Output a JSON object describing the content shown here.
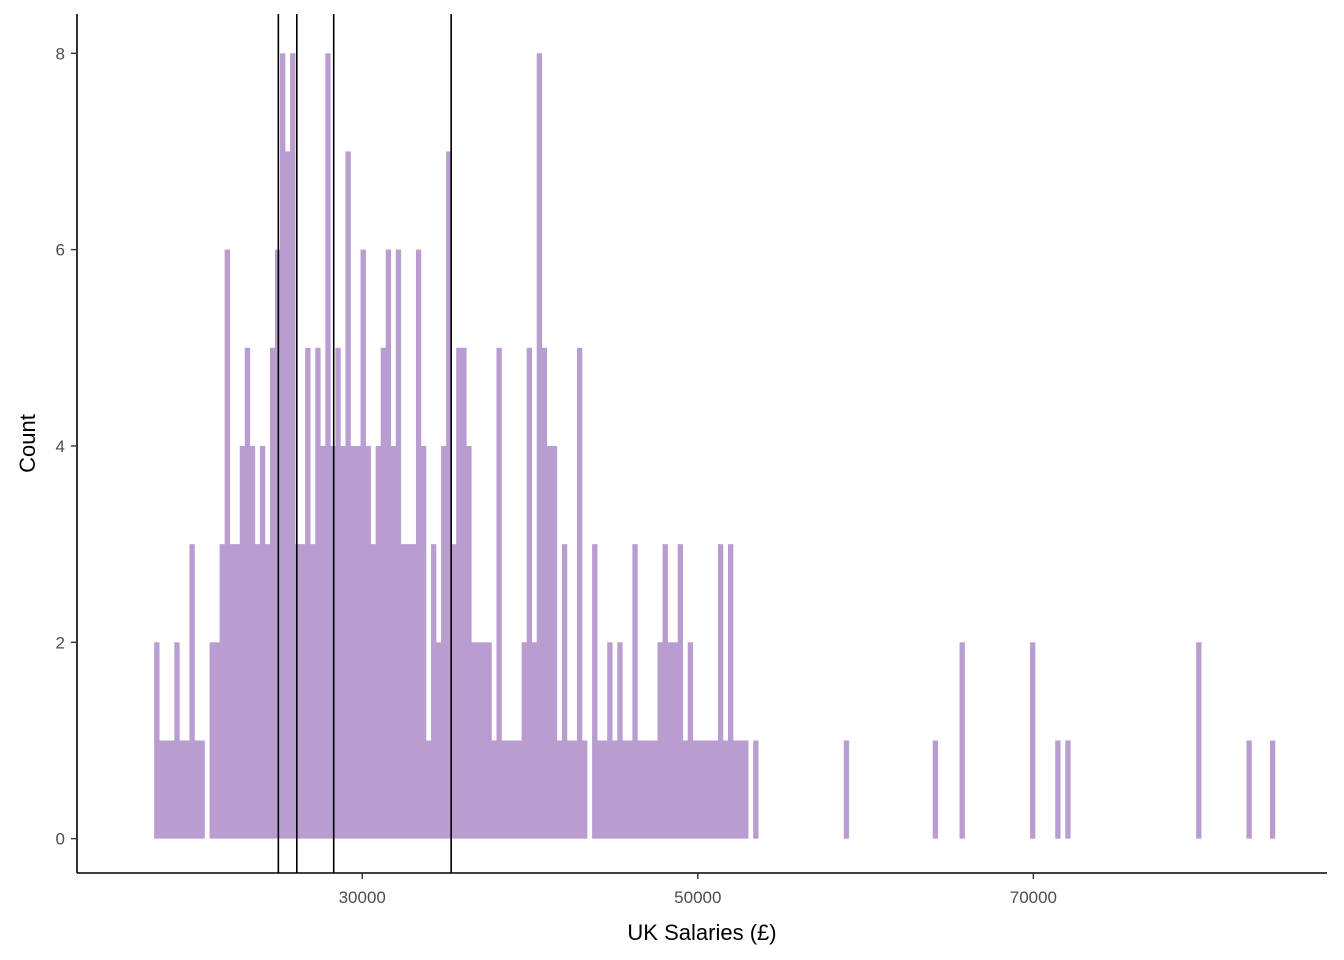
{
  "chart_data": {
    "type": "bar",
    "subtype": "histogram",
    "title": "",
    "xlabel": "UK Salaries (£)",
    "ylabel": "Count",
    "xlim": [
      13000,
      87500
    ],
    "ylim": [
      -0.35,
      8.4
    ],
    "x_ticks": [
      30000,
      50000,
      70000
    ],
    "y_ticks": [
      0,
      2,
      4,
      6,
      8
    ],
    "grid": false,
    "legend": "none",
    "bin_width": 300,
    "bar_color": "#b99dd0",
    "vline_color": "#000000",
    "vlines": [
      25000,
      26100,
      28300,
      35300
    ],
    "bins": [
      {
        "x": 17750,
        "count": 2
      },
      {
        "x": 18050,
        "count": 1
      },
      {
        "x": 18350,
        "count": 1
      },
      {
        "x": 18650,
        "count": 1
      },
      {
        "x": 18950,
        "count": 2
      },
      {
        "x": 19250,
        "count": 1
      },
      {
        "x": 19550,
        "count": 1
      },
      {
        "x": 19850,
        "count": 3
      },
      {
        "x": 20150,
        "count": 1
      },
      {
        "x": 20450,
        "count": 1
      },
      {
        "x": 21050,
        "count": 2
      },
      {
        "x": 21350,
        "count": 2
      },
      {
        "x": 21650,
        "count": 3
      },
      {
        "x": 21950,
        "count": 6
      },
      {
        "x": 22250,
        "count": 3
      },
      {
        "x": 22550,
        "count": 3
      },
      {
        "x": 22850,
        "count": 4
      },
      {
        "x": 23150,
        "count": 5
      },
      {
        "x": 23450,
        "count": 4
      },
      {
        "x": 23750,
        "count": 3
      },
      {
        "x": 24050,
        "count": 4
      },
      {
        "x": 24350,
        "count": 3
      },
      {
        "x": 24650,
        "count": 5
      },
      {
        "x": 24950,
        "count": 6
      },
      {
        "x": 25250,
        "count": 8
      },
      {
        "x": 25550,
        "count": 7
      },
      {
        "x": 25850,
        "count": 8
      },
      {
        "x": 26150,
        "count": 3
      },
      {
        "x": 26450,
        "count": 3
      },
      {
        "x": 26750,
        "count": 5
      },
      {
        "x": 27050,
        "count": 3
      },
      {
        "x": 27350,
        "count": 5
      },
      {
        "x": 27650,
        "count": 4
      },
      {
        "x": 27950,
        "count": 8
      },
      {
        "x": 28250,
        "count": 4
      },
      {
        "x": 28550,
        "count": 5
      },
      {
        "x": 28850,
        "count": 4
      },
      {
        "x": 29150,
        "count": 7
      },
      {
        "x": 29450,
        "count": 4
      },
      {
        "x": 29750,
        "count": 4
      },
      {
        "x": 30050,
        "count": 6
      },
      {
        "x": 30350,
        "count": 4
      },
      {
        "x": 30650,
        "count": 3
      },
      {
        "x": 30950,
        "count": 4
      },
      {
        "x": 31250,
        "count": 5
      },
      {
        "x": 31550,
        "count": 6
      },
      {
        "x": 31850,
        "count": 4
      },
      {
        "x": 32150,
        "count": 6
      },
      {
        "x": 32450,
        "count": 3
      },
      {
        "x": 32750,
        "count": 3
      },
      {
        "x": 33050,
        "count": 3
      },
      {
        "x": 33350,
        "count": 6
      },
      {
        "x": 33650,
        "count": 4
      },
      {
        "x": 33950,
        "count": 1
      },
      {
        "x": 34250,
        "count": 3
      },
      {
        "x": 34550,
        "count": 2
      },
      {
        "x": 34850,
        "count": 4
      },
      {
        "x": 35150,
        "count": 7
      },
      {
        "x": 35450,
        "count": 3
      },
      {
        "x": 35750,
        "count": 5
      },
      {
        "x": 36050,
        "count": 5
      },
      {
        "x": 36350,
        "count": 4
      },
      {
        "x": 36650,
        "count": 2
      },
      {
        "x": 36950,
        "count": 2
      },
      {
        "x": 37250,
        "count": 2
      },
      {
        "x": 37550,
        "count": 2
      },
      {
        "x": 37850,
        "count": 1
      },
      {
        "x": 38150,
        "count": 5
      },
      {
        "x": 38450,
        "count": 1
      },
      {
        "x": 38750,
        "count": 1
      },
      {
        "x": 39050,
        "count": 1
      },
      {
        "x": 39350,
        "count": 1
      },
      {
        "x": 39650,
        "count": 2
      },
      {
        "x": 39950,
        "count": 5
      },
      {
        "x": 40250,
        "count": 2
      },
      {
        "x": 40550,
        "count": 8
      },
      {
        "x": 40850,
        "count": 5
      },
      {
        "x": 41150,
        "count": 4
      },
      {
        "x": 41450,
        "count": 4
      },
      {
        "x": 41750,
        "count": 1
      },
      {
        "x": 42050,
        "count": 3
      },
      {
        "x": 42350,
        "count": 1
      },
      {
        "x": 42650,
        "count": 1
      },
      {
        "x": 42950,
        "count": 5
      },
      {
        "x": 43250,
        "count": 1
      },
      {
        "x": 43850,
        "count": 3
      },
      {
        "x": 44150,
        "count": 1
      },
      {
        "x": 44450,
        "count": 1
      },
      {
        "x": 44750,
        "count": 2
      },
      {
        "x": 45050,
        "count": 1
      },
      {
        "x": 45350,
        "count": 2
      },
      {
        "x": 45650,
        "count": 1
      },
      {
        "x": 45950,
        "count": 1
      },
      {
        "x": 46250,
        "count": 3
      },
      {
        "x": 46550,
        "count": 1
      },
      {
        "x": 46850,
        "count": 1
      },
      {
        "x": 47150,
        "count": 1
      },
      {
        "x": 47450,
        "count": 1
      },
      {
        "x": 47750,
        "count": 2
      },
      {
        "x": 48050,
        "count": 3
      },
      {
        "x": 48350,
        "count": 2
      },
      {
        "x": 48650,
        "count": 2
      },
      {
        "x": 48950,
        "count": 3
      },
      {
        "x": 49250,
        "count": 1
      },
      {
        "x": 49550,
        "count": 2
      },
      {
        "x": 49850,
        "count": 1
      },
      {
        "x": 50150,
        "count": 1
      },
      {
        "x": 50450,
        "count": 1
      },
      {
        "x": 50750,
        "count": 1
      },
      {
        "x": 51050,
        "count": 1
      },
      {
        "x": 51350,
        "count": 3
      },
      {
        "x": 51650,
        "count": 1
      },
      {
        "x": 51950,
        "count": 3
      },
      {
        "x": 52250,
        "count": 1
      },
      {
        "x": 52550,
        "count": 1
      },
      {
        "x": 52850,
        "count": 1
      },
      {
        "x": 53450,
        "count": 1
      },
      {
        "x": 58850,
        "count": 1
      },
      {
        "x": 64150,
        "count": 1
      },
      {
        "x": 65750,
        "count": 2
      },
      {
        "x": 69950,
        "count": 2
      },
      {
        "x": 71450,
        "count": 1
      },
      {
        "x": 72050,
        "count": 1
      },
      {
        "x": 79850,
        "count": 2
      },
      {
        "x": 82850,
        "count": 1
      },
      {
        "x": 84250,
        "count": 1
      }
    ]
  }
}
